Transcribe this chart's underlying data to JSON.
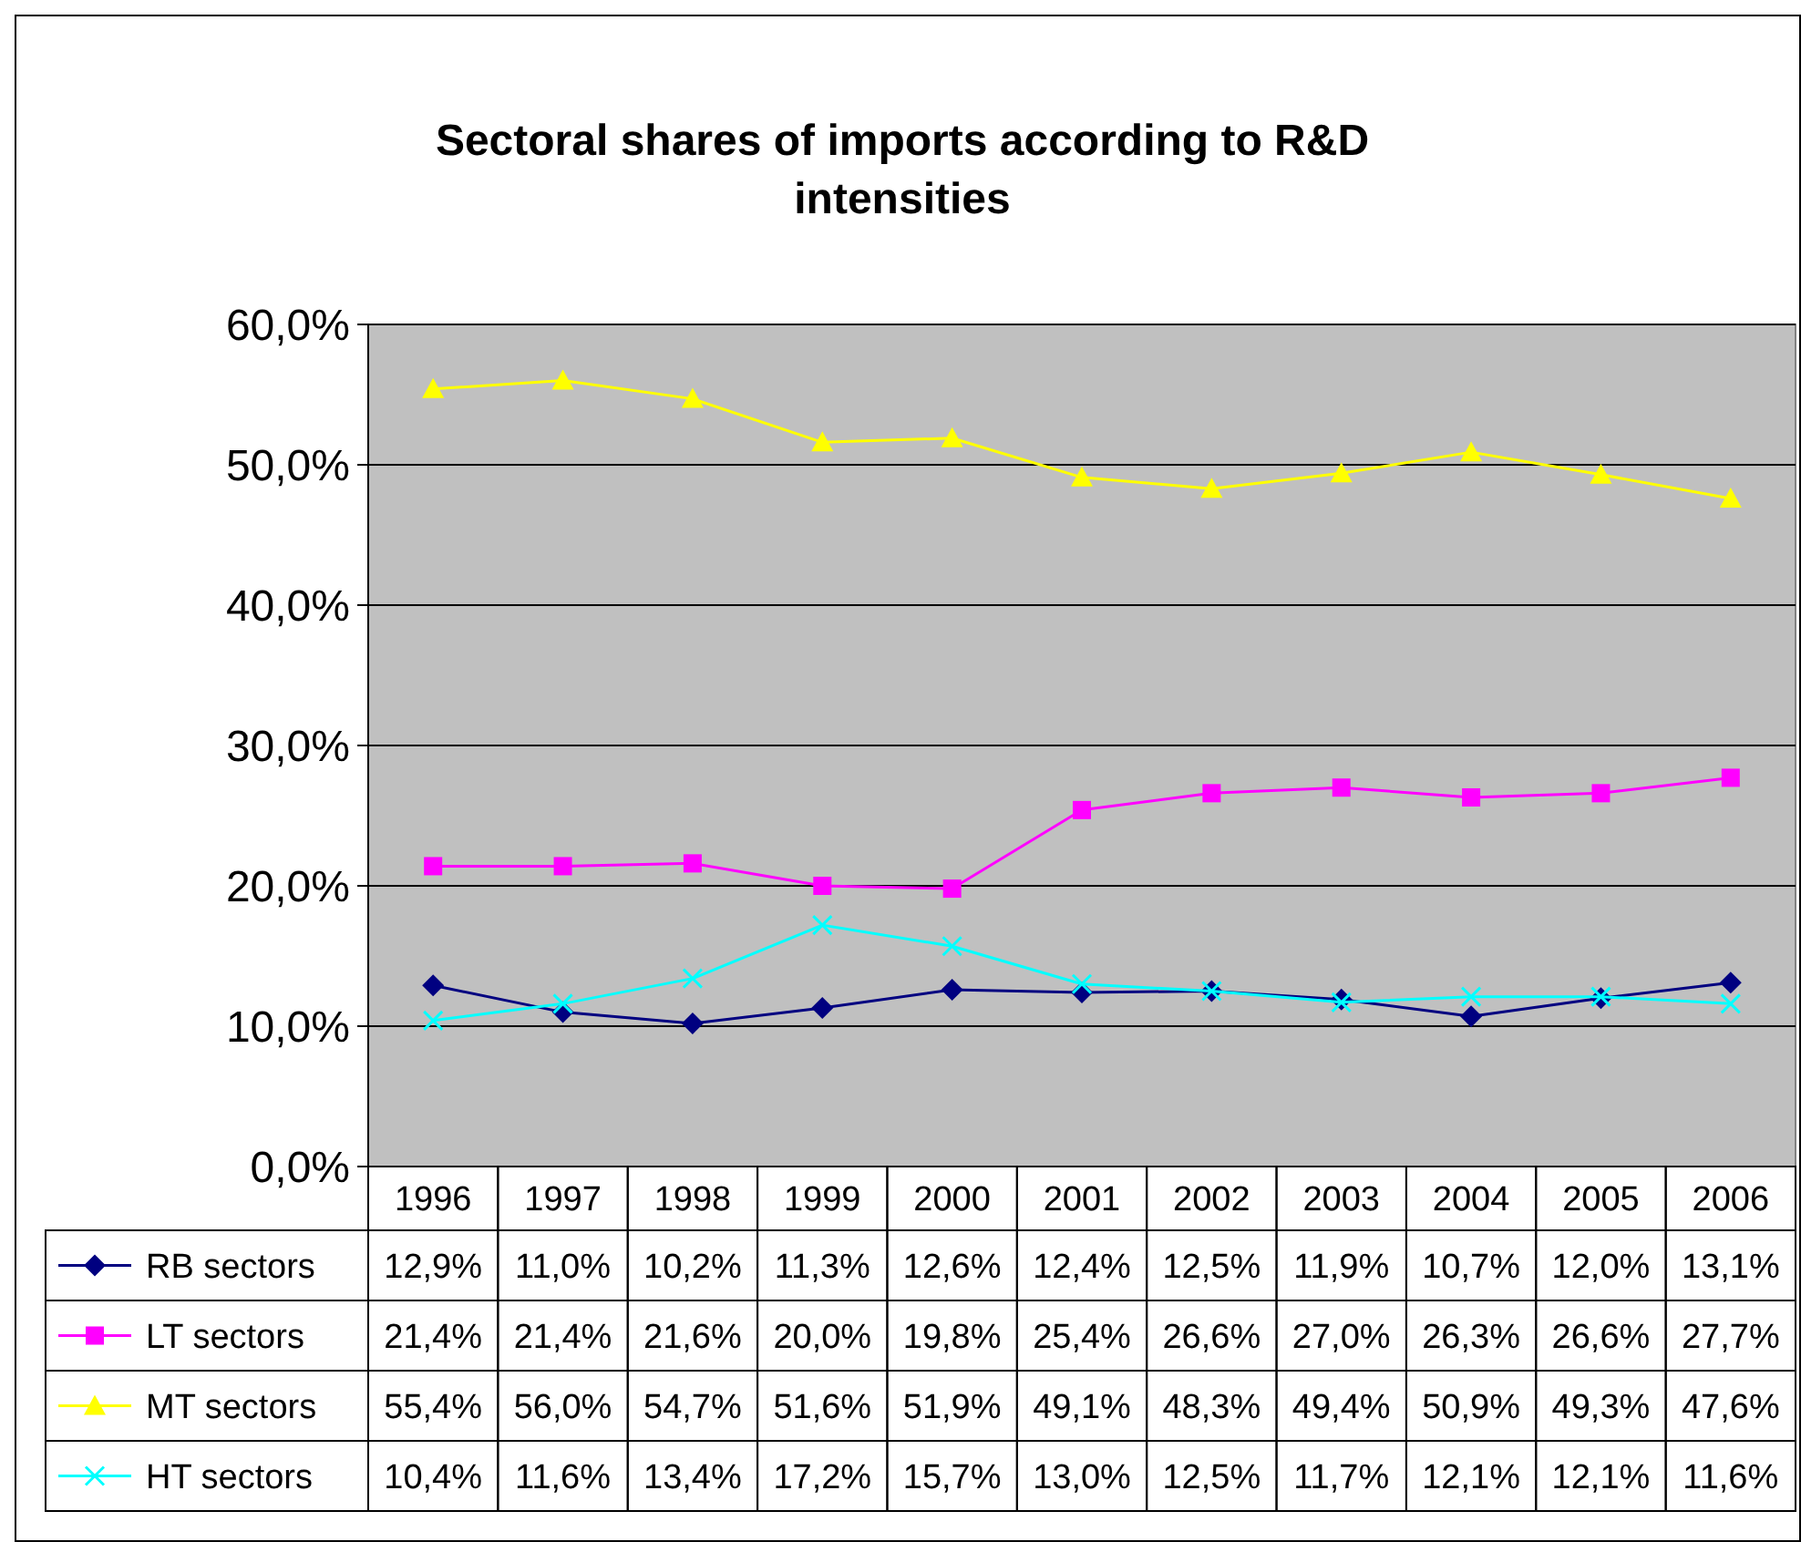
{
  "chart_data": {
    "type": "line",
    "title": "Sectoral shares of imports according to R&D intensities",
    "categories": [
      "1996",
      "1997",
      "1998",
      "1999",
      "2000",
      "2001",
      "2002",
      "2003",
      "2004",
      "2005",
      "2006"
    ],
    "ylim": [
      0,
      60
    ],
    "yticks": [
      {
        "value": 0,
        "label": "0,0%"
      },
      {
        "value": 10,
        "label": "10,0%"
      },
      {
        "value": 20,
        "label": "20,0%"
      },
      {
        "value": 30,
        "label": "30,0%"
      },
      {
        "value": 40,
        "label": "40,0%"
      },
      {
        "value": 50,
        "label": "50,0%"
      },
      {
        "value": 60,
        "label": "60,0%"
      }
    ],
    "grid": "y",
    "legend": "bottom",
    "series": [
      {
        "name": "RB sectors",
        "color": "#000080",
        "marker": "diamond",
        "values": [
          12.9,
          11.0,
          10.2,
          11.3,
          12.6,
          12.4,
          12.5,
          11.9,
          10.7,
          12.0,
          13.1
        ],
        "value_labels": [
          "12,9%",
          "11,0%",
          "10,2%",
          "11,3%",
          "12,6%",
          "12,4%",
          "12,5%",
          "11,9%",
          "10,7%",
          "12,0%",
          "13,1%"
        ]
      },
      {
        "name": "LT sectors",
        "color": "#ff00ff",
        "marker": "square",
        "values": [
          21.4,
          21.4,
          21.6,
          20.0,
          19.8,
          25.4,
          26.6,
          27.0,
          26.3,
          26.6,
          27.7
        ],
        "value_labels": [
          "21,4%",
          "21,4%",
          "21,6%",
          "20,0%",
          "19,8%",
          "25,4%",
          "26,6%",
          "27,0%",
          "26,3%",
          "26,6%",
          "27,7%"
        ]
      },
      {
        "name": "MT sectors",
        "color": "#ffff00",
        "marker": "triangle",
        "values": [
          55.4,
          56.0,
          54.7,
          51.6,
          51.9,
          49.1,
          48.3,
          49.4,
          50.9,
          49.3,
          47.6
        ],
        "value_labels": [
          "55,4%",
          "56,0%",
          "54,7%",
          "51,6%",
          "51,9%",
          "49,1%",
          "48,3%",
          "49,4%",
          "50,9%",
          "49,3%",
          "47,6%"
        ]
      },
      {
        "name": "HT sectors",
        "color": "#00ffff",
        "marker": "cross",
        "values": [
          10.4,
          11.6,
          13.4,
          17.2,
          15.7,
          13.0,
          12.5,
          11.7,
          12.1,
          12.1,
          11.6
        ],
        "value_labels": [
          "10,4%",
          "11,6%",
          "13,4%",
          "17,2%",
          "15,7%",
          "13,0%",
          "12,5%",
          "11,7%",
          "12,1%",
          "12,1%",
          "11,6%"
        ]
      }
    ]
  }
}
